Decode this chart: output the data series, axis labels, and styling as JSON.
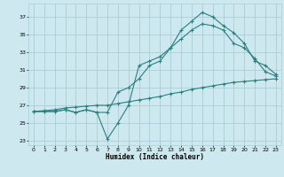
{
  "xlabel": "Humidex (Indice chaleur)",
  "bg_color": "#cde8ee",
  "grid_color": "#aacdd6",
  "line_color": "#2a8080",
  "xlim": [
    -0.5,
    23.5
  ],
  "ylim": [
    22.5,
    38.5
  ],
  "xticks": [
    0,
    1,
    2,
    3,
    4,
    5,
    6,
    7,
    8,
    9,
    10,
    11,
    12,
    13,
    14,
    15,
    16,
    17,
    18,
    19,
    20,
    21,
    22,
    23
  ],
  "yticks": [
    23,
    25,
    27,
    29,
    31,
    33,
    35,
    37
  ],
  "line1_y": [
    26.3,
    26.3,
    26.3,
    26.5,
    26.2,
    26.5,
    26.2,
    23.2,
    25.0,
    27.0,
    31.5,
    32.0,
    32.5,
    33.5,
    35.5,
    36.5,
    37.5,
    37.0,
    36.0,
    35.2,
    34.0,
    32.0,
    31.5,
    30.5
  ],
  "line2_y": [
    26.3,
    26.3,
    26.3,
    26.5,
    26.2,
    26.5,
    26.2,
    26.2,
    28.5,
    29.0,
    30.0,
    31.5,
    32.0,
    33.5,
    34.5,
    35.5,
    36.2,
    36.0,
    35.5,
    34.0,
    33.5,
    32.3,
    30.8,
    30.3
  ],
  "line3_y": [
    26.3,
    26.4,
    26.5,
    26.7,
    26.8,
    26.9,
    27.0,
    27.0,
    27.2,
    27.4,
    27.6,
    27.8,
    28.0,
    28.3,
    28.5,
    28.8,
    29.0,
    29.2,
    29.4,
    29.6,
    29.7,
    29.8,
    29.9,
    30.0
  ]
}
